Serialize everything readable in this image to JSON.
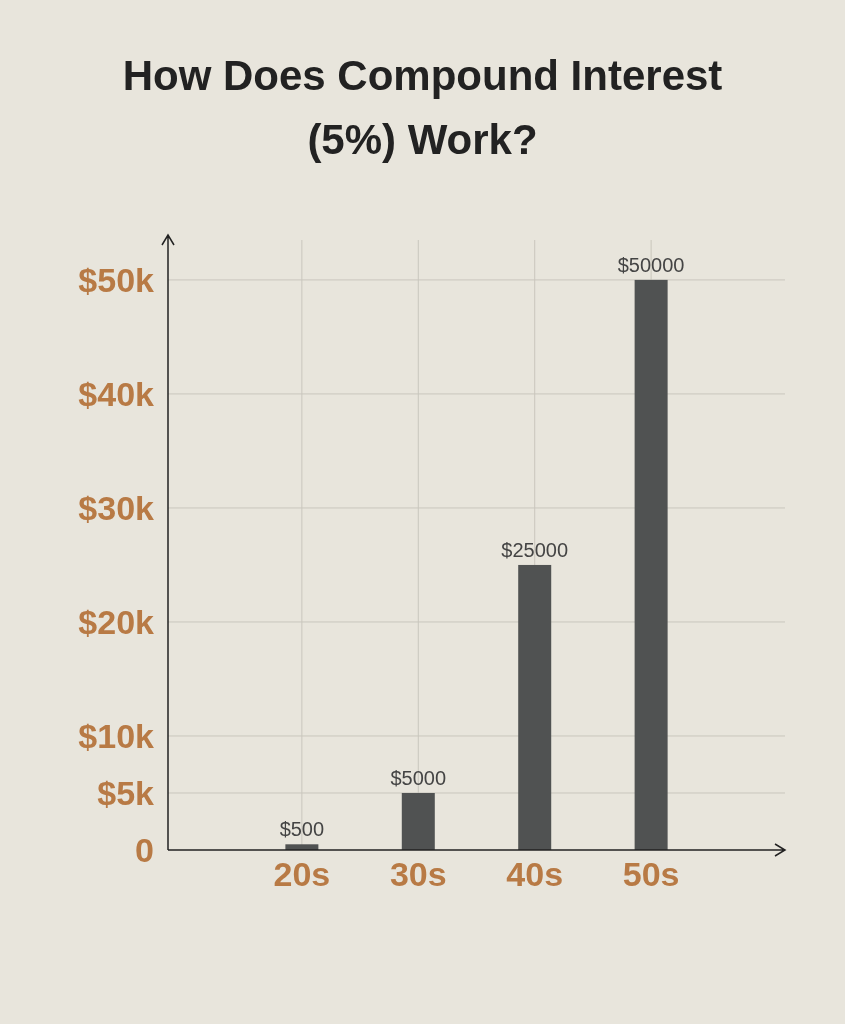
{
  "chart_data": {
    "type": "bar",
    "title": "How Does Compound Interest (5%) Work?",
    "categories": [
      "20s",
      "30s",
      "40s",
      "50s"
    ],
    "values": [
      500,
      5000,
      25000,
      50000
    ],
    "value_labels": [
      "$500",
      "$5000",
      "$25000",
      "$50000"
    ],
    "color": "#505252",
    "ylim": [
      0,
      53500
    ],
    "yticks": [
      {
        "value": 0,
        "label": "0"
      },
      {
        "value": 5000,
        "label": "$5k"
      },
      {
        "value": 10000,
        "label": "$10k"
      },
      {
        "value": 20000,
        "label": "$20k"
      },
      {
        "value": 30000,
        "label": "$30k"
      },
      {
        "value": 40000,
        "label": "$40k"
      },
      {
        "value": 50000,
        "label": "$50k"
      }
    ],
    "grid": true
  }
}
